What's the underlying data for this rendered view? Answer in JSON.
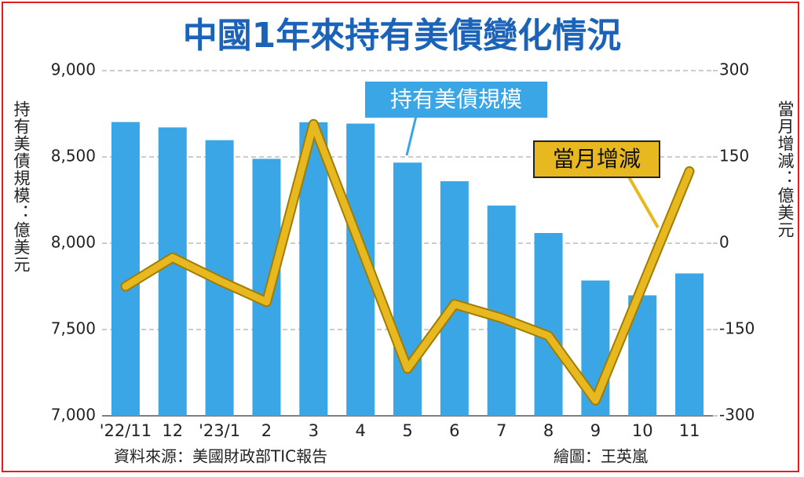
{
  "chart_data": {
    "type": "bar",
    "title": "中國1年來持有美債變化情況",
    "y_label": "持有美債規模：億美元",
    "y2_label": "當月增減：億美元",
    "source": "資料來源：美國財政部TIC報告",
    "credit": "繪圖：王英嵐",
    "categories": [
      "'22/11",
      "12",
      "'23/1",
      "2",
      "3",
      "4",
      "5",
      "6",
      "7",
      "8",
      "9",
      "10",
      "11"
    ],
    "series": [
      {
        "name": "持有美債規模",
        "color": "#3aa6e6",
        "values": [
          8702,
          8671,
          8597,
          8489,
          8701,
          8693,
          8467,
          8359,
          8218,
          8059,
          7784,
          7698,
          7825
        ]
      },
      {
        "name": "當月增減",
        "color": "#e8b820",
        "axis": "y2",
        "values": [
          -75,
          -25,
          -65,
          -102,
          207,
          -5,
          -218,
          -106,
          -130,
          -161,
          -273,
          -74,
          125
        ]
      }
    ],
    "ylim": [
      7000,
      9000
    ],
    "yticks": [
      {
        "value": 7000,
        "label": "7,000"
      },
      {
        "value": 7500,
        "label": "7,500"
      },
      {
        "value": 8000,
        "label": "8,000"
      },
      {
        "value": 8500,
        "label": "8,500"
      },
      {
        "value": 9000,
        "label": "9,000"
      }
    ],
    "y2lim": [
      -300,
      300
    ],
    "y2ticks": [
      -300,
      -150,
      0,
      150,
      300
    ],
    "grid": true
  }
}
